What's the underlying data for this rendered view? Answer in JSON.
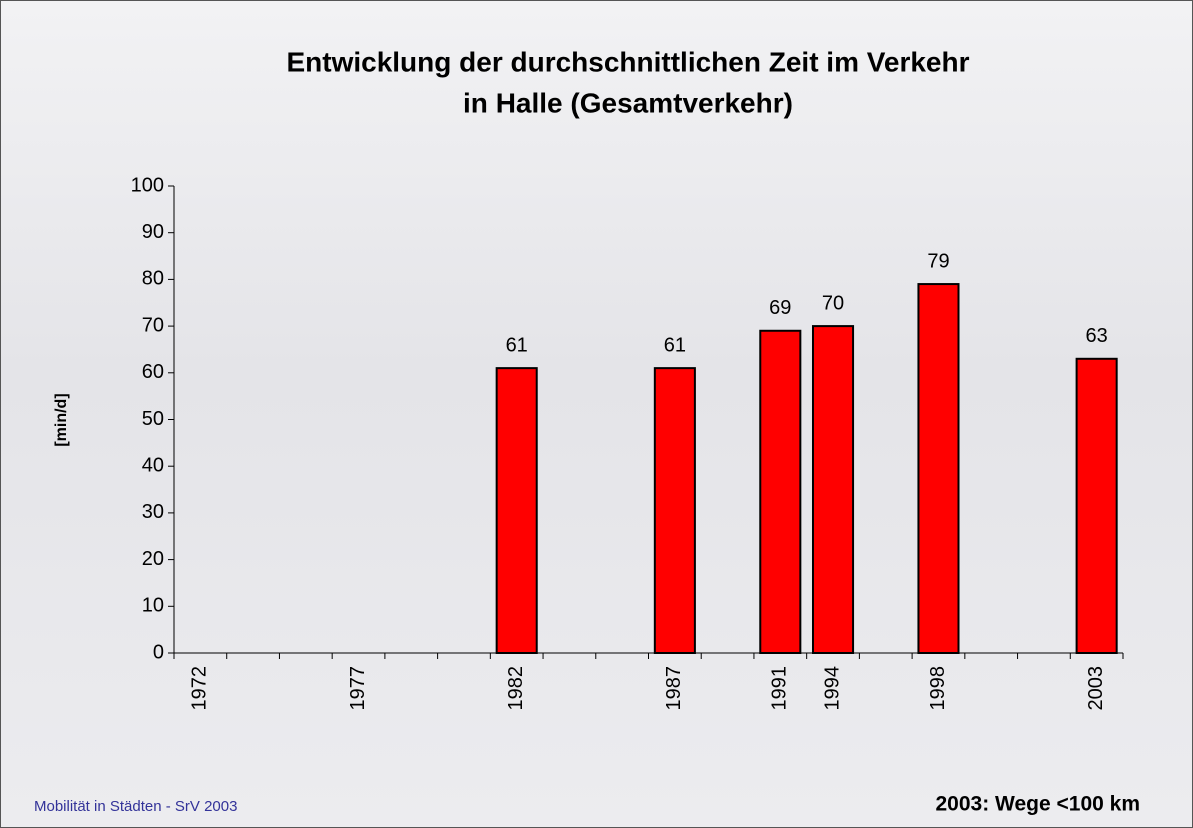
{
  "chart_data": {
    "type": "bar",
    "title": "Entwicklung der durchschnittlichen Zeit im Verkehr",
    "subtitle": "in Halle (Gesamtverkehr)",
    "y_label": "[min/d]",
    "categories": [
      "1972",
      null,
      null,
      "1977",
      null,
      null,
      "1982",
      null,
      null,
      "1987",
      null,
      "1991",
      "1994",
      null,
      "1998",
      null,
      null,
      "2003"
    ],
    "values": [
      null,
      null,
      null,
      null,
      null,
      null,
      61,
      null,
      null,
      61,
      null,
      69,
      70,
      null,
      79,
      null,
      null,
      63
    ],
    "color": "#ff0000",
    "ylim": [
      0,
      100
    ],
    "yticks": [
      0,
      10,
      20,
      30,
      40,
      50,
      60,
      70,
      80,
      90,
      100
    ],
    "source": "Mobilität in Städten - SrV 2003",
    "note": "2003: Wege <100 km"
  }
}
